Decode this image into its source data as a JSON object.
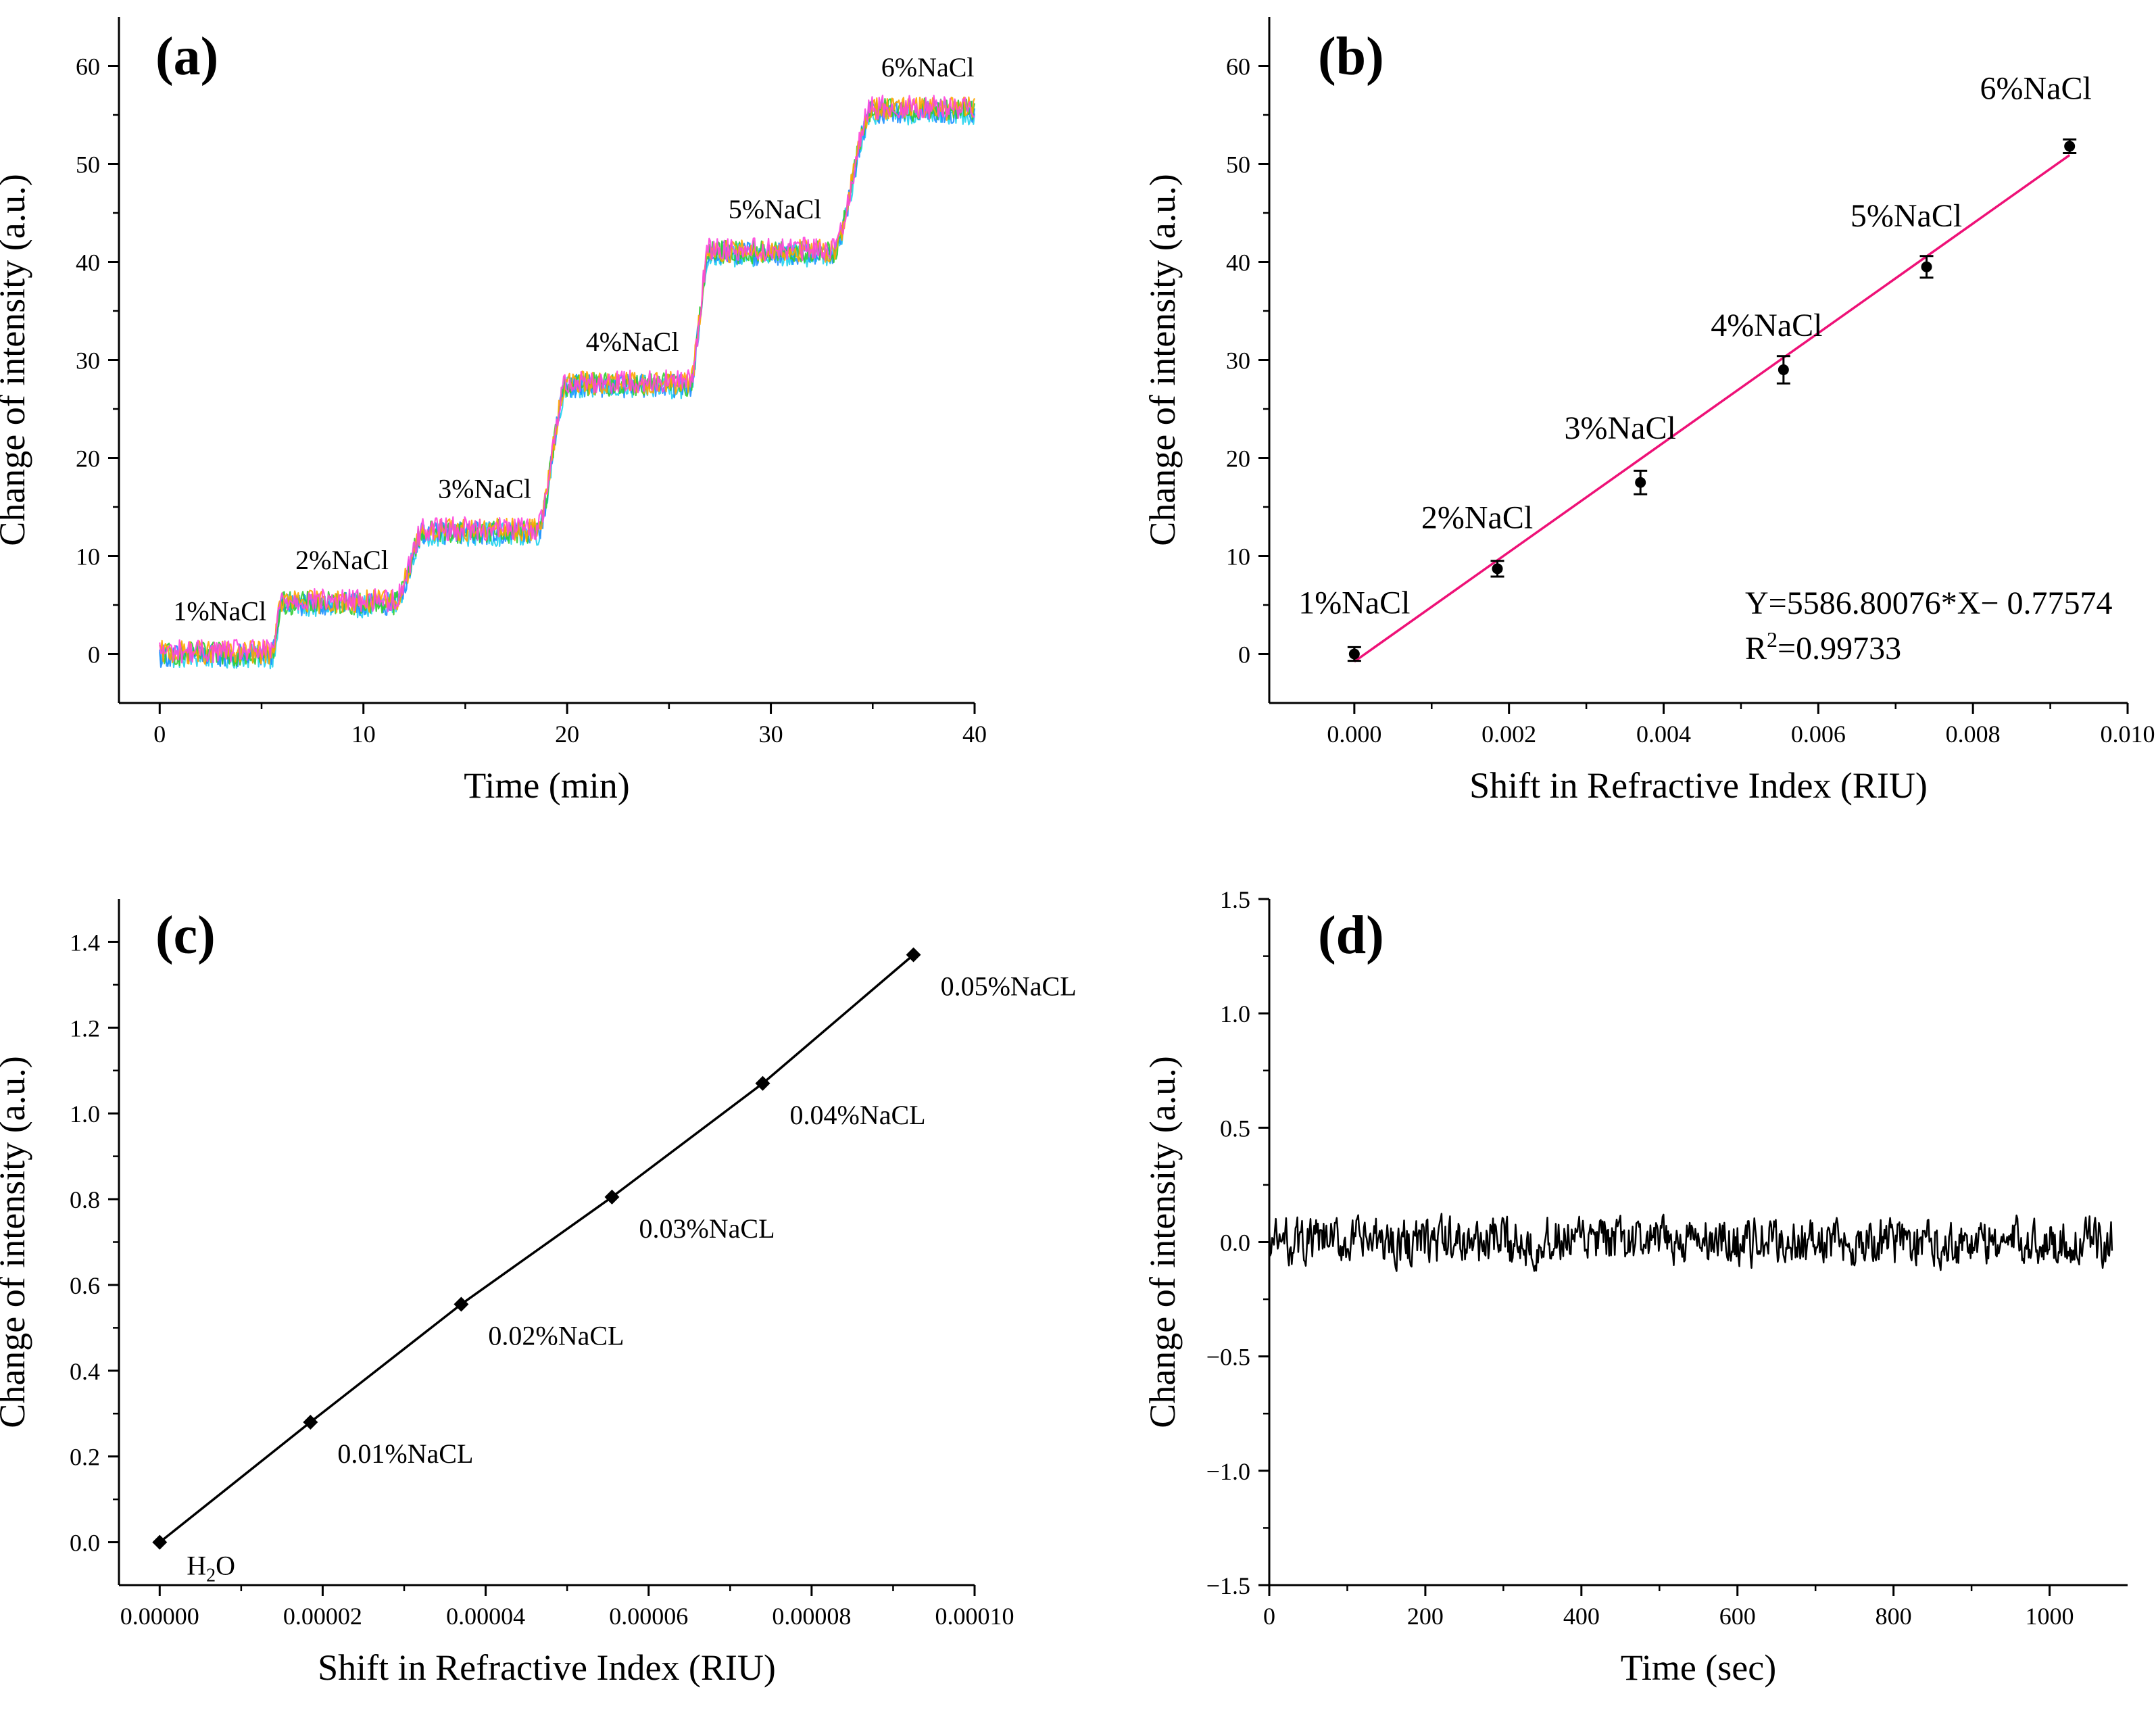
{
  "chart_data": [
    {
      "panel": "(a)",
      "type": "line",
      "xlabel": "Time (min)",
      "ylabel": "Change of intensity (a.u.)",
      "xlim": [
        -2,
        40
      ],
      "ylim": [
        -5,
        65
      ],
      "xticks": [
        0,
        10,
        20,
        30,
        40
      ],
      "yticks": [
        0,
        10,
        20,
        30,
        40,
        50,
        60
      ],
      "levels": [
        {
          "label": "1%NaCl",
          "t_start": 0,
          "t_end": 5.5,
          "value": 0
        },
        {
          "label": "2%NaCl",
          "t_start": 6,
          "t_end": 11.5,
          "value": 5.2
        },
        {
          "label": "3%NaCl",
          "t_start": 13,
          "t_end": 18.5,
          "value": 12.5
        },
        {
          "label": "4%NaCl",
          "t_start": 20,
          "t_end": 26,
          "value": 27.5
        },
        {
          "label": "5%NaCl",
          "t_start": 27,
          "t_end": 33,
          "value": 41
        },
        {
          "label": "6%NaCl",
          "t_start": 35,
          "t_end": 40,
          "value": 55.5
        }
      ],
      "series_colors": [
        "#22d3ee",
        "#1e90ff",
        "#32cd32",
        "#ffa500",
        "#ff44dd"
      ],
      "noise_amplitude": 1.2
    },
    {
      "panel": "(b)",
      "type": "scatter",
      "xlabel": "Shift in Refractive Index (RIU)",
      "ylabel": "Change of intensity (a.u.)",
      "xlim": [
        -0.0011,
        0.01
      ],
      "ylim": [
        -5,
        65
      ],
      "xticks": [
        0.0,
        0.002,
        0.004,
        0.006,
        0.008,
        0.01
      ],
      "xticklabels": [
        "0.000",
        "0.002",
        "0.004",
        "0.006",
        "0.008",
        "0.010"
      ],
      "yticks": [
        0,
        10,
        20,
        30,
        40,
        50,
        60
      ],
      "points": [
        {
          "x": 0.0,
          "y": 0.0,
          "err": 0.7,
          "label": "1%NaCl"
        },
        {
          "x": 0.00185,
          "y": 8.7,
          "err": 0.8,
          "label": "2%NaCl"
        },
        {
          "x": 0.0037,
          "y": 17.5,
          "err": 1.2,
          "label": "3%NaCl"
        },
        {
          "x": 0.00555,
          "y": 29.0,
          "err": 1.4,
          "label": "4%NaCl"
        },
        {
          "x": 0.0074,
          "y": 39.5,
          "err": 1.1,
          "label": "5%NaCl"
        },
        {
          "x": 0.00925,
          "y": 51.8,
          "err": 0.7,
          "label": "6%NaCl"
        }
      ],
      "fit": {
        "slope": 5586.80076,
        "intercept": -0.77574,
        "x_range": [
          0.0,
          0.00925
        ],
        "color": "#ee1177"
      },
      "equation": "Y=5586.80076*X− 0.77574",
      "r2_prefix": "R",
      "r2_sup": "2",
      "r2_value": "=0.99733"
    },
    {
      "panel": "(c)",
      "type": "line",
      "xlabel": "Shift in Refractive Index (RIU)",
      "ylabel": "Change of intensity (a.u.)",
      "xlim": [
        -5e-06,
        0.0001
      ],
      "ylim": [
        -0.1,
        1.5
      ],
      "xticks": [
        0.0,
        2e-05,
        4e-05,
        6e-05,
        8e-05,
        0.0001
      ],
      "xticklabels": [
        "0.00000",
        "0.00002",
        "0.00004",
        "0.00006",
        "0.00008",
        "0.00010"
      ],
      "yticks": [
        0.0,
        0.2,
        0.4,
        0.6,
        0.8,
        1.0,
        1.2,
        1.4
      ],
      "yticklabels": [
        "0.0",
        "0.2",
        "0.4",
        "0.6",
        "0.8",
        "1.0",
        "1.2",
        "1.4"
      ],
      "points": [
        {
          "x": 0.0,
          "y": 0.0,
          "label": "H2O"
        },
        {
          "x": 1.85e-05,
          "y": 0.28,
          "label": "0.01%NaCL"
        },
        {
          "x": 3.7e-05,
          "y": 0.555,
          "label": "0.02%NaCL"
        },
        {
          "x": 5.55e-05,
          "y": 0.805,
          "label": "0.03%NaCL"
        },
        {
          "x": 7.4e-05,
          "y": 1.07,
          "label": "0.04%NaCL"
        },
        {
          "x": 9.25e-05,
          "y": 1.37,
          "label": "0.05%NaCL"
        }
      ],
      "h2o_base": "H",
      "h2o_sub": "2",
      "h2o_end": "O"
    },
    {
      "panel": "(d)",
      "type": "line",
      "xlabel": "Time (sec)",
      "ylabel": "Change of intensity (a.u.)",
      "xlim": [
        0,
        1100
      ],
      "ylim": [
        -1.5,
        1.5
      ],
      "xticks": [
        0,
        200,
        400,
        600,
        800,
        1000
      ],
      "yticks": [
        -1.5,
        -1.0,
        -0.5,
        0.0,
        0.5,
        1.0,
        1.5
      ],
      "yticklabels": [
        "−1.5",
        "−1.0",
        "−0.5",
        "0.0",
        "0.5",
        "1.0",
        "1.5"
      ],
      "t_range": [
        0,
        1080
      ],
      "noise_amplitude": 0.14,
      "mean": 0.0
    }
  ]
}
